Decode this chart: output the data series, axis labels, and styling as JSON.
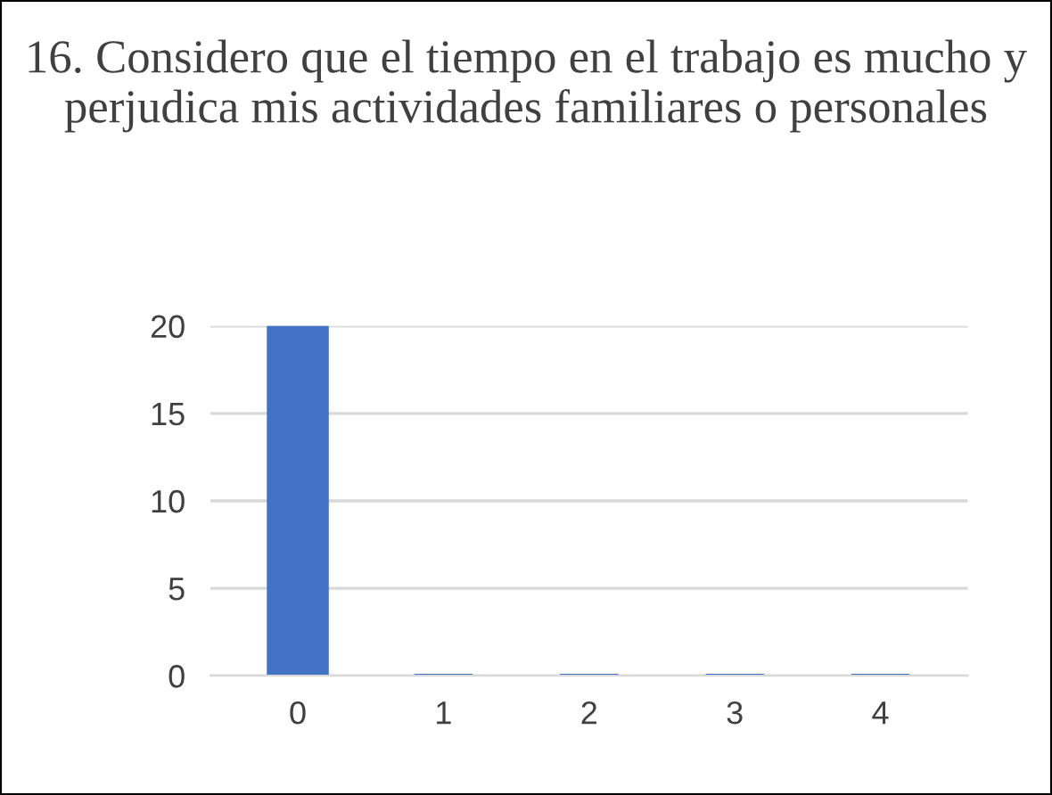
{
  "chart_data": {
    "type": "bar",
    "title": "16. Considero que el tiempo en el trabajo es mucho y perjudica mis actividades familiares o personales",
    "categories": [
      "0",
      "1",
      "2",
      "3",
      "4"
    ],
    "values": [
      20,
      0,
      0,
      0,
      0
    ],
    "color": "#4472c4",
    "ylim": [
      0,
      20
    ],
    "yticks": [
      0,
      5,
      10,
      15,
      20
    ],
    "grid": "y",
    "legend": false
  }
}
